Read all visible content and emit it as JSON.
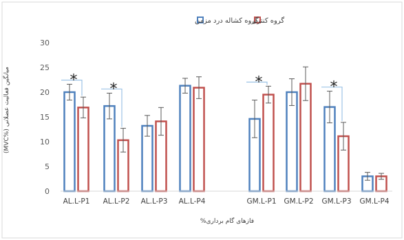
{
  "chart_data": {
    "type": "bar",
    "xlabel": "فازهای گام برداری%",
    "ylabel": "میانگین فعالیت عضلانی (%MVC)",
    "ylim": [
      0,
      30
    ],
    "yticks": [
      0,
      5,
      10,
      15,
      20,
      25,
      30
    ],
    "grid": false,
    "legend_position": "top-center",
    "categories": [
      "AL.L-P1",
      "AL.L-P2",
      "AL.L-P3",
      "AL.L-P4",
      "GM.L-P1",
      "GM.L-P2",
      "GM.L-P3",
      "GM.L-P4"
    ],
    "series": [
      {
        "name": "گروه کشاله درد مزمن",
        "color": "#4F81BD",
        "values": [
          20,
          17.2,
          13.2,
          21.3,
          14.6,
          20,
          17,
          3
        ],
        "errors": [
          1.6,
          2.6,
          2.1,
          1.5,
          3.8,
          2.7,
          3.2,
          0.8
        ]
      },
      {
        "name": "گروه کنترل",
        "color": "#C0504D",
        "values": [
          16.9,
          10.3,
          14.1,
          20.9,
          19.5,
          21.7,
          11.1,
          3
        ],
        "errors": [
          2.1,
          2.4,
          2.8,
          2.2,
          1.7,
          3.4,
          2.8,
          0.6
        ]
      }
    ],
    "significance": [
      {
        "category_index": 0,
        "label": "*"
      },
      {
        "category_index": 1,
        "label": "*"
      },
      {
        "category_index": 4,
        "label": "*"
      },
      {
        "category_index": 6,
        "label": "*"
      }
    ]
  }
}
